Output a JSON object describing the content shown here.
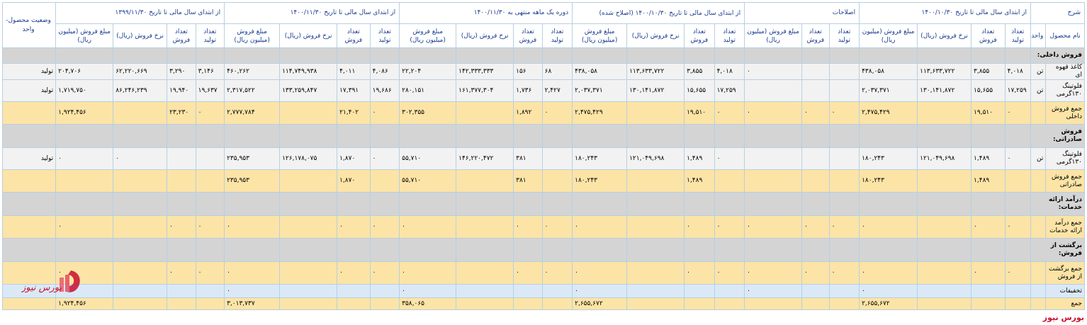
{
  "header": {
    "desc": "شرح",
    "groups": [
      "از ابتدای سال مالی تا تاریخ ۱۴۰۰/۱۰/۳۰",
      "اصلاحات",
      "از ابتدای سال مالی تا تاریخ ۱۴۰۰/۱۰/۳۰ (اصلاح شده)",
      "دوره یک ماهه منتهی به ۱۴۰۰/۱۱/۳۰",
      "از ابتدای سال مالی تا تاریخ ۱۴۰۰/۱۱/۳۰",
      "از ابتدای سال مالی تا تاریخ ۱۳۹۹/۱۱/۳۰"
    ],
    "status": "وضعیت محصول-واحد",
    "name_col": "نام محصول",
    "unit_col": "واحد",
    "sub4": [
      "تعداد تولید",
      "تعداد فروش",
      "نرخ فروش (ریال)",
      "مبلغ فروش (میلیون ریال)"
    ],
    "sub3": [
      "تعداد تولید",
      "تعداد فروش",
      "مبلغ فروش (میلیون ریال)"
    ]
  },
  "rows": [
    {
      "type": "sec",
      "label": "فروش داخلی:"
    },
    {
      "type": "data",
      "name": "کاغذ قهوه ای",
      "unit": "تن",
      "status": "تولید",
      "c": [
        "۴,۰۱۸",
        "۳,۸۵۵",
        "۱۱۳,۶۳۳,۷۲۲",
        "۴۳۸,۰۵۸",
        "",
        "",
        "۰",
        "۴,۰۱۸",
        "۳,۸۵۵",
        "۱۱۳,۶۳۳,۷۲۲",
        "۴۳۸,۰۵۸",
        "۶۸",
        "۱۵۶",
        "۱۴۲,۳۳۳,۳۳۳",
        "۲۲,۲۰۴",
        "۴,۰۸۶",
        "۴,۰۱۱",
        "۱۱۴,۷۴۹,۹۳۸",
        "۴۶۰,۲۶۲",
        "۳,۱۴۶",
        "۳,۲۹۰",
        "۶۲,۲۲۰,۶۶۹",
        "۲۰۴,۷۰۶"
      ]
    },
    {
      "type": "data",
      "name": "فلوتینگ ۱۳۰گرمی",
      "unit": "تن",
      "status": "تولید",
      "c": [
        "۱۷,۲۵۹",
        "۱۵,۶۵۵",
        "۱۳۰,۱۴۱,۸۷۲",
        "۲,۰۳۷,۳۷۱",
        "",
        "",
        "",
        "۱۷,۲۵۹",
        "۱۵,۶۵۵",
        "۱۳۰,۱۴۱,۸۷۲",
        "۲,۰۳۷,۳۷۱",
        "۲,۴۲۷",
        "۱,۷۳۶",
        "۱۶۱,۳۷۷,۳۰۴",
        "۲۸۰,۱۵۱",
        "۱۹,۶۸۶",
        "۱۷,۳۹۱",
        "۱۳۳,۲۵۹,۸۴۷",
        "۲,۳۱۷,۵۲۲",
        "۱۹,۶۳۷",
        "۱۹,۹۴۰",
        "۸۶,۲۴۶,۲۳۹",
        "۱,۷۱۹,۷۵۰"
      ]
    },
    {
      "type": "total",
      "name": "جمع فروش داخلی",
      "unit": "",
      "status": "",
      "c": [
        "۰",
        "۱۹,۵۱۰",
        "",
        "۲,۴۷۵,۴۲۹",
        "۰",
        "۰",
        "۰",
        "۰",
        "۱۹,۵۱۰",
        "",
        "۲,۴۷۵,۴۲۹",
        "۰",
        "۱,۸۹۲",
        "",
        "۳۰۲,۳۵۵",
        "۰",
        "۲۱,۴۰۲",
        "",
        "۲,۷۷۷,۷۸۴",
        "۰",
        "۲۳,۲۳۰",
        "",
        "۱,۹۲۴,۴۵۶"
      ]
    },
    {
      "type": "sec",
      "label": "فروش صادراتی:"
    },
    {
      "type": "data",
      "name": "فلوتینگ ۱۳۰گرمی",
      "unit": "تن",
      "status": "تولید",
      "c": [
        "۰",
        "۱,۴۸۹",
        "۱۲۱,۰۴۹,۶۹۸",
        "۱۸۰,۲۴۳",
        "",
        "",
        "",
        "۰",
        "۱,۴۸۹",
        "۱۲۱,۰۴۹,۶۹۸",
        "۱۸۰,۲۴۳",
        "",
        "۳۸۱",
        "۱۴۶,۲۲۰,۴۷۲",
        "۵۵,۷۱۰",
        "۰",
        "۱,۸۷۰",
        "۱۲۶,۱۷۸,۰۷۵",
        "۲۳۵,۹۵۳",
        "",
        "",
        "۰",
        "۰"
      ]
    },
    {
      "type": "total",
      "name": "جمع فروش صادراتی",
      "unit": "",
      "status": "",
      "c": [
        "",
        "۱,۴۸۹",
        "",
        "۱۸۰,۲۴۳",
        "",
        "",
        "",
        "",
        "۱,۴۸۹",
        "",
        "۱۸۰,۲۴۳",
        "",
        "۳۸۱",
        "",
        "۵۵,۷۱۰",
        "",
        "۱,۸۷۰",
        "",
        "۲۳۵,۹۵۳",
        "",
        "",
        "",
        ""
      ]
    },
    {
      "type": "sec",
      "label": "درآمد ارائه خدمات:"
    },
    {
      "type": "total",
      "name": "جمع درآمد ارائه خدمات",
      "unit": "",
      "status": "",
      "c": [
        "۰",
        "۰",
        "",
        "۰",
        "۰",
        "۰",
        "۰",
        "۰",
        "۰",
        "",
        "۰",
        "۰",
        "۰",
        "",
        "۰",
        "۰",
        "۰",
        "",
        "۰",
        "۰",
        "۰",
        "",
        "۰"
      ]
    },
    {
      "type": "sec",
      "label": "برگشت از فروش:"
    },
    {
      "type": "total",
      "name": "جمع برگشت از فروش",
      "unit": "",
      "status": "",
      "c": [
        "۰",
        "۰",
        "",
        "۰",
        "۰",
        "۰",
        "۰",
        "۰",
        "۰",
        "",
        "۰",
        "۰",
        "۰",
        "",
        "۰",
        "۰",
        "۰",
        "",
        "۰",
        "۰",
        "۰",
        "",
        "۰"
      ]
    },
    {
      "type": "blue",
      "name": "تخفیفات",
      "unit": "",
      "status": "",
      "c": [
        "",
        "",
        "",
        "۰",
        "",
        "",
        "۰",
        "",
        "",
        "",
        "۰",
        "",
        "",
        "",
        "۰",
        "",
        "",
        "",
        "۰",
        "",
        "",
        "",
        "۰"
      ]
    },
    {
      "type": "totalshort",
      "name": "جمع",
      "unit": "",
      "status": "",
      "c": [
        "",
        "",
        "",
        "۲,۶۵۵,۶۷۲",
        "",
        "",
        "",
        "",
        "",
        "",
        "۲,۶۵۵,۶۷۲",
        "",
        "",
        "",
        "۳۵۸,۰۶۵",
        "",
        "",
        "",
        "۳,۰۱۳,۷۳۷",
        "",
        "",
        "",
        "۱,۹۲۴,۴۵۶"
      ]
    }
  ],
  "watermark": "بورس نیوز",
  "footer": "بورس نیوز"
}
